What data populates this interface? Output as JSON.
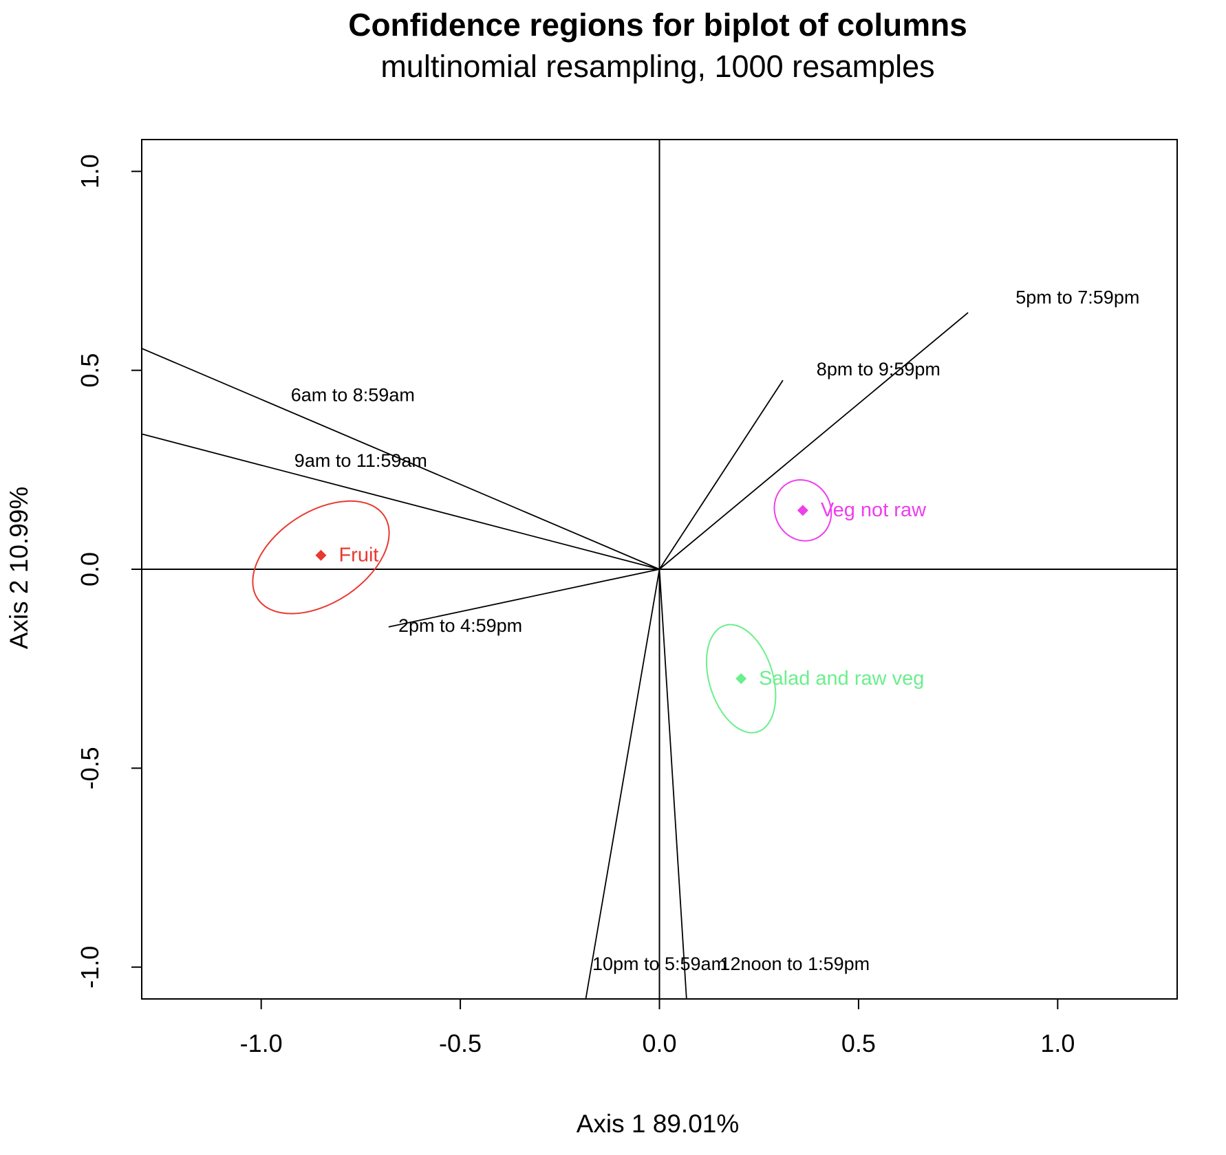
{
  "chart_data": {
    "type": "scatter",
    "title": "Confidence regions for biplot of columns",
    "subtitle": "multinomial resampling,  1000 resamples",
    "xlabel": "Axis 1    89.01%",
    "ylabel": "Axis 2    10.99%",
    "xlim": [
      -1.3,
      1.3
    ],
    "ylim": [
      -1.08,
      1.08
    ],
    "x_ticks": [
      -1.0,
      -0.5,
      0.0,
      0.5,
      1.0
    ],
    "x_tick_labels": [
      "-1.0",
      "-0.5",
      "0.0",
      "0.5",
      "1.0"
    ],
    "y_ticks": [
      -1.0,
      -0.5,
      0.0,
      0.5,
      1.0
    ],
    "y_tick_labels": [
      "-1.0",
      "-0.5",
      "0.0",
      "0.5",
      "1.0"
    ],
    "reference_lines": {
      "x": 0,
      "y": 0
    },
    "vectors": [
      {
        "label": "6am to 8:59am",
        "x": -1.3,
        "y": 0.555,
        "label_x": -0.77,
        "label_y": 0.435
      },
      {
        "label": "9am to 11:59am",
        "x": -1.3,
        "y": 0.34,
        "label_x": -0.75,
        "label_y": 0.27
      },
      {
        "label": "2pm to 4:59pm",
        "x": -0.68,
        "y": -0.145,
        "label_x": -0.5,
        "label_y": -0.145
      },
      {
        "label": "5pm to 7:59pm",
        "x": 0.775,
        "y": 0.645,
        "label_x": 1.05,
        "label_y": 0.68
      },
      {
        "label": "8pm to 9:59pm",
        "x": 0.31,
        "y": 0.475,
        "label_x": 0.55,
        "label_y": 0.5
      },
      {
        "label": "10pm to 5:59am",
        "x": -0.185,
        "y": -1.08,
        "label_x": 0.0,
        "label_y": -0.995
      },
      {
        "label": "12noon to 1:59pm",
        "x": 0.068,
        "y": -1.08,
        "label_x": 0.34,
        "label_y": -0.995
      }
    ],
    "points": [
      {
        "label": "Fruit",
        "x": -0.85,
        "y": 0.035,
        "color": "#e8392f",
        "ellipse": {
          "cx": -0.85,
          "cy": 0.03,
          "rx": 0.19,
          "ry": 0.115,
          "angle_deg": 33
        }
      },
      {
        "label": "Veg not raw",
        "x": 0.36,
        "y": 0.148,
        "color": "#ee3eee",
        "ellipse": {
          "cx": 0.36,
          "cy": 0.148,
          "rx": 0.07,
          "ry": 0.078,
          "angle_deg": 25
        }
      },
      {
        "label": "Salad and raw veg",
        "x": 0.205,
        "y": -0.275,
        "color": "#6bef8c",
        "ellipse": {
          "cx": 0.205,
          "cy": -0.275,
          "rx": 0.08,
          "ry": 0.14,
          "angle_deg": 17
        }
      }
    ],
    "grid": false,
    "legend": "none"
  }
}
